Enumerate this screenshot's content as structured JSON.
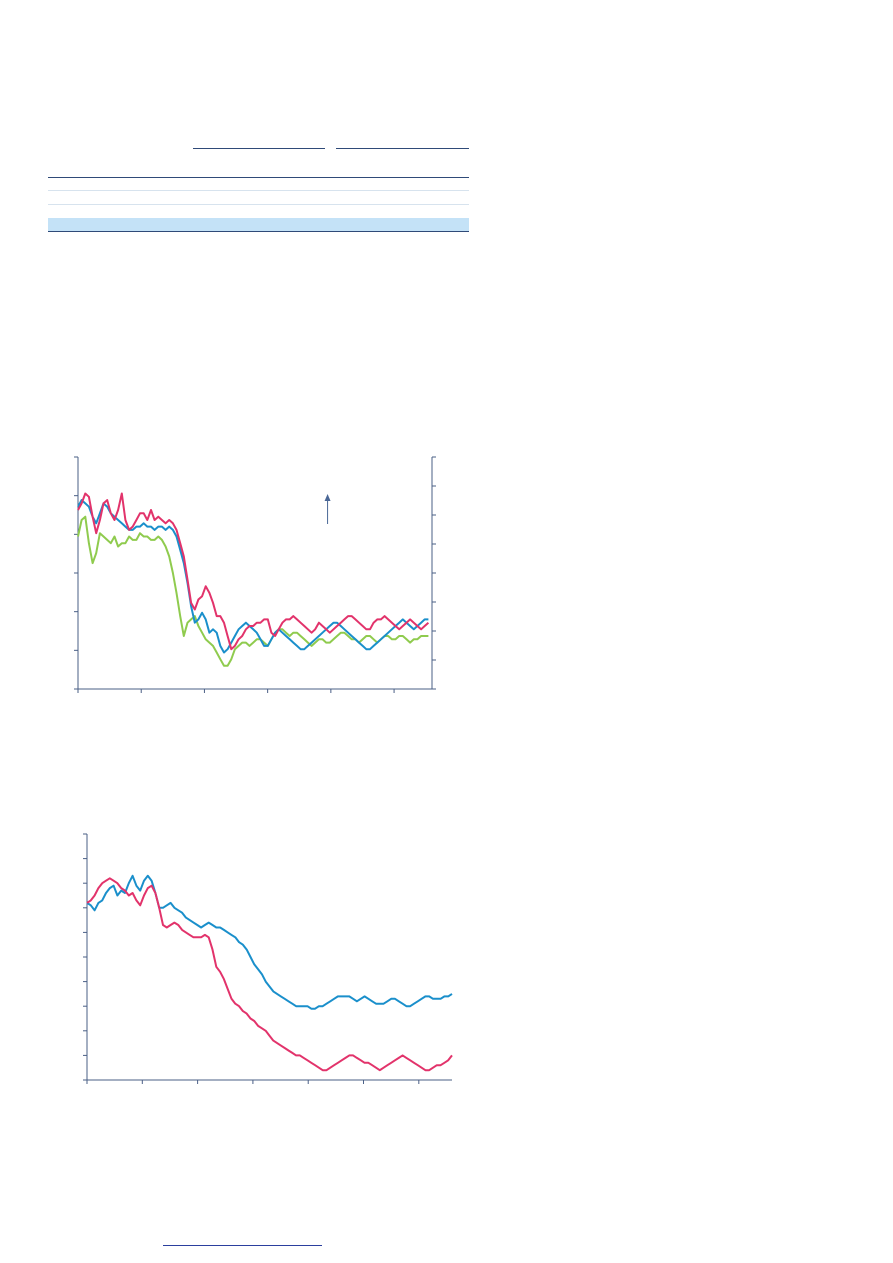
{
  "colors": {
    "pink": "#e2336b",
    "blue": "#1a8fcb",
    "green": "#8fcb4e",
    "axis": "#4a5f86",
    "table_rule": "#2f4a78",
    "table_light": "#d7e3ee",
    "table_band": "#c4e2f7",
    "arrow": "#4a6796",
    "link": "#2b3f9e"
  },
  "table": {
    "column_group_count": 2,
    "body_rows": 3,
    "highlighted_row": 3
  },
  "chart_data": [
    {
      "type": "line",
      "x": [
        0,
        1,
        2,
        3,
        4,
        5,
        6,
        7,
        8,
        9,
        10,
        11,
        12,
        13,
        14,
        15,
        16,
        17,
        18,
        19,
        20,
        21,
        22,
        23,
        24,
        25,
        26,
        27,
        28,
        29,
        30,
        31,
        32,
        33,
        34,
        35,
        36,
        37,
        38,
        39,
        40,
        41,
        42,
        43,
        44,
        45,
        46,
        47,
        48,
        49,
        50,
        51,
        52,
        53,
        54,
        55,
        56,
        57,
        58,
        59,
        60,
        61,
        62,
        63,
        64,
        65,
        66,
        67,
        68,
        69,
        70,
        71,
        72,
        73,
        74,
        75,
        76,
        77,
        78,
        79,
        80,
        81,
        82,
        83,
        84,
        85,
        86,
        87,
        88,
        89,
        90,
        91,
        92,
        93,
        94,
        95,
        96
      ],
      "xlim": [
        0,
        97
      ],
      "ylim": [
        0,
        7
      ],
      "x_tick_count": 6,
      "y_tick_count": 7,
      "right_y_tick_count": 9,
      "annotation": "arrow-up",
      "series": [
        {
          "color": "pink",
          "values": [
            5.4,
            5.6,
            5.9,
            5.8,
            5.2,
            4.7,
            5.1,
            5.6,
            5.7,
            5.3,
            5.1,
            5.4,
            5.9,
            5.1,
            4.8,
            4.9,
            5.1,
            5.3,
            5.3,
            5.1,
            5.4,
            5.1,
            5.2,
            5.1,
            5.0,
            5.1,
            5.0,
            4.8,
            4.4,
            4.0,
            3.3,
            2.6,
            2.4,
            2.7,
            2.8,
            3.1,
            2.9,
            2.6,
            2.2,
            2.2,
            2.0,
            1.6,
            1.2,
            1.3,
            1.5,
            1.6,
            1.8,
            1.9,
            1.9,
            2.0,
            2.0,
            2.1,
            2.1,
            1.7,
            1.6,
            1.8,
            2.0,
            2.1,
            2.1,
            2.2,
            2.1,
            2.0,
            1.9,
            1.8,
            1.7,
            1.8,
            2.0,
            1.9,
            1.8,
            1.7,
            1.8,
            1.9,
            2.0,
            2.1,
            2.2,
            2.2,
            2.1,
            2.0,
            1.9,
            1.8,
            1.8,
            2.0,
            2.1,
            2.1,
            2.2,
            2.1,
            2.0,
            1.9,
            1.8,
            1.9,
            2.0,
            2.1,
            2.0,
            1.9,
            1.8,
            1.9,
            2.0
          ]
        },
        {
          "color": "blue",
          "values": [
            5.5,
            5.7,
            5.6,
            5.5,
            5.2,
            5.0,
            5.3,
            5.6,
            5.5,
            5.3,
            5.2,
            5.1,
            5.0,
            4.9,
            4.8,
            4.8,
            4.9,
            4.9,
            5.0,
            4.9,
            4.9,
            4.8,
            4.9,
            4.9,
            4.8,
            4.9,
            4.8,
            4.6,
            4.2,
            3.8,
            3.2,
            2.5,
            2.0,
            2.1,
            2.3,
            2.1,
            1.7,
            1.8,
            1.7,
            1.3,
            1.1,
            1.2,
            1.4,
            1.6,
            1.8,
            1.9,
            2.0,
            1.9,
            1.8,
            1.7,
            1.5,
            1.3,
            1.3,
            1.5,
            1.7,
            1.8,
            1.7,
            1.6,
            1.5,
            1.4,
            1.3,
            1.2,
            1.2,
            1.3,
            1.4,
            1.5,
            1.6,
            1.7,
            1.8,
            1.9,
            2.0,
            2.0,
            1.9,
            1.8,
            1.7,
            1.6,
            1.5,
            1.4,
            1.3,
            1.2,
            1.2,
            1.3,
            1.4,
            1.5,
            1.6,
            1.7,
            1.8,
            1.9,
            2.0,
            2.1,
            2.0,
            1.9,
            1.8,
            1.9,
            2.0,
            2.1,
            2.1
          ]
        },
        {
          "color": "green",
          "values": [
            4.6,
            5.1,
            5.2,
            4.4,
            3.8,
            4.1,
            4.7,
            4.6,
            4.5,
            4.4,
            4.6,
            4.3,
            4.4,
            4.4,
            4.6,
            4.5,
            4.5,
            4.7,
            4.6,
            4.6,
            4.5,
            4.5,
            4.6,
            4.5,
            4.3,
            4.0,
            3.5,
            2.9,
            2.2,
            1.6,
            2.0,
            2.1,
            2.2,
            1.9,
            1.7,
            1.5,
            1.4,
            1.3,
            1.1,
            0.9,
            0.7,
            0.7,
            0.9,
            1.2,
            1.3,
            1.4,
            1.4,
            1.3,
            1.4,
            1.5,
            1.5,
            1.4,
            1.3,
            1.5,
            1.7,
            1.8,
            1.8,
            1.7,
            1.6,
            1.7,
            1.7,
            1.6,
            1.5,
            1.4,
            1.3,
            1.4,
            1.5,
            1.5,
            1.4,
            1.4,
            1.5,
            1.6,
            1.7,
            1.7,
            1.6,
            1.5,
            1.5,
            1.4,
            1.5,
            1.6,
            1.6,
            1.5,
            1.4,
            1.5,
            1.6,
            1.6,
            1.5,
            1.5,
            1.6,
            1.6,
            1.5,
            1.4,
            1.5,
            1.5,
            1.6,
            1.6,
            1.6
          ]
        }
      ]
    },
    {
      "type": "line",
      "x": [
        0,
        1,
        2,
        3,
        4,
        5,
        6,
        7,
        8,
        9,
        10,
        11,
        12,
        13,
        14,
        15,
        16,
        17,
        18,
        19,
        20,
        21,
        22,
        23,
        24,
        25,
        26,
        27,
        28,
        29,
        30,
        31,
        32,
        33,
        34,
        35,
        36,
        37,
        38,
        39,
        40,
        41,
        42,
        43,
        44,
        45,
        46,
        47,
        48,
        49,
        50,
        51,
        52,
        53,
        54,
        55,
        56,
        57,
        58,
        59,
        60,
        61,
        62,
        63,
        64,
        65,
        66,
        67,
        68,
        69,
        70,
        71,
        72,
        73,
        74,
        75,
        76,
        77,
        78,
        79,
        80,
        81,
        82,
        83,
        84,
        85,
        86,
        87,
        88,
        89,
        90,
        91,
        92,
        93,
        94,
        95,
        96
      ],
      "xlim": [
        0,
        96
      ],
      "ylim": [
        0,
        10
      ],
      "x_tick_count": 7,
      "y_tick_count": 11,
      "series": [
        {
          "color": "pink",
          "values": [
            7.2,
            7.3,
            7.5,
            7.8,
            8.0,
            8.1,
            8.2,
            8.1,
            8.0,
            7.8,
            7.7,
            7.5,
            7.6,
            7.3,
            7.1,
            7.5,
            7.8,
            7.9,
            7.6,
            7.0,
            6.3,
            6.2,
            6.3,
            6.4,
            6.3,
            6.1,
            6.0,
            5.9,
            5.8,
            5.8,
            5.8,
            5.9,
            5.8,
            5.3,
            4.6,
            4.4,
            4.1,
            3.7,
            3.3,
            3.1,
            3.0,
            2.8,
            2.7,
            2.5,
            2.4,
            2.2,
            2.1,
            2.0,
            1.8,
            1.6,
            1.5,
            1.4,
            1.3,
            1.2,
            1.1,
            1.0,
            1.0,
            0.9,
            0.8,
            0.7,
            0.6,
            0.5,
            0.4,
            0.4,
            0.5,
            0.6,
            0.7,
            0.8,
            0.9,
            1.0,
            1.0,
            0.9,
            0.8,
            0.7,
            0.7,
            0.6,
            0.5,
            0.4,
            0.5,
            0.6,
            0.7,
            0.8,
            0.9,
            1.0,
            0.9,
            0.8,
            0.7,
            0.6,
            0.5,
            0.4,
            0.4,
            0.5,
            0.6,
            0.6,
            0.7,
            0.8,
            1.0
          ]
        },
        {
          "color": "blue",
          "values": [
            7.2,
            7.1,
            6.9,
            7.2,
            7.3,
            7.6,
            7.8,
            7.9,
            7.5,
            7.7,
            7.6,
            8.0,
            8.3,
            7.9,
            7.7,
            8.1,
            8.3,
            8.1,
            7.6,
            7.0,
            7.0,
            7.1,
            7.2,
            7.0,
            6.9,
            6.8,
            6.6,
            6.5,
            6.4,
            6.3,
            6.2,
            6.3,
            6.4,
            6.3,
            6.2,
            6.2,
            6.1,
            6.0,
            5.9,
            5.8,
            5.6,
            5.5,
            5.3,
            5.0,
            4.7,
            4.5,
            4.3,
            4.0,
            3.8,
            3.6,
            3.5,
            3.4,
            3.3,
            3.2,
            3.1,
            3.0,
            3.0,
            3.0,
            3.0,
            2.9,
            2.9,
            3.0,
            3.0,
            3.1,
            3.2,
            3.3,
            3.4,
            3.4,
            3.4,
            3.4,
            3.3,
            3.2,
            3.3,
            3.4,
            3.3,
            3.2,
            3.1,
            3.1,
            3.1,
            3.2,
            3.3,
            3.3,
            3.2,
            3.1,
            3.0,
            3.0,
            3.1,
            3.2,
            3.3,
            3.4,
            3.4,
            3.3,
            3.3,
            3.3,
            3.4,
            3.4,
            3.5
          ]
        }
      ]
    }
  ]
}
